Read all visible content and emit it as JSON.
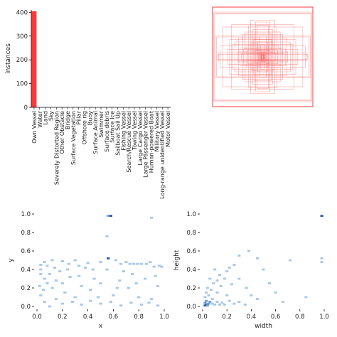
{
  "chart_data": [
    {
      "type": "bar",
      "title": "",
      "xlabel": "",
      "ylabel": "instances",
      "ylim": [
        0,
        410
      ],
      "yticks": [
        0,
        100,
        200,
        300,
        400
      ],
      "color": "#ff3838",
      "categories": [
        "Own Vessel",
        "Water",
        "Land",
        "Sky",
        "Severely Distorted Region",
        "Other Obstacle",
        "Bridge",
        "Surface Vegetation",
        "Pillar",
        "Offshore rig",
        "Buoy",
        "Surface Animal",
        "Swimmer",
        "Surface debris",
        "Surface Ice",
        "Sailboat Sail Up",
        "Fishing Vessel",
        "Search/Rescue Vessel",
        "Towing Vessel",
        "Large Cargo Vessel",
        "Large Passenger Vessel",
        "Human-powered Boat",
        "Military Vessel",
        "Long-range  unidentified Vessel",
        "Motor Vessel"
      ],
      "values": [
        405,
        0,
        0,
        0,
        0,
        0,
        0,
        0,
        0,
        0,
        0,
        0,
        0,
        0,
        0,
        0,
        0,
        0,
        0,
        0,
        0,
        0,
        0,
        0,
        0
      ]
    },
    {
      "type": "boxes",
      "title": "",
      "color": "#ff3838",
      "boxes": [
        [
          0.5,
          0.5,
          1.0,
          0.9
        ],
        [
          0.5,
          0.5,
          0.98,
          0.88
        ],
        [
          0.5,
          0.5,
          0.96,
          0.86
        ],
        [
          0.5,
          0.5,
          0.95,
          0.42
        ],
        [
          0.5,
          0.5,
          0.92,
          0.4
        ],
        [
          0.5,
          0.5,
          0.9,
          0.05
        ],
        [
          0.5,
          0.5,
          0.88,
          0.08
        ],
        [
          0.5,
          0.5,
          0.8,
          0.6
        ],
        [
          0.5,
          0.5,
          0.62,
          0.65
        ],
        [
          0.5,
          0.5,
          0.6,
          0.25
        ],
        [
          0.5,
          0.5,
          0.55,
          0.3
        ],
        [
          0.5,
          0.5,
          0.48,
          0.38
        ],
        [
          0.5,
          0.5,
          0.45,
          0.18
        ],
        [
          0.5,
          0.5,
          0.4,
          0.45
        ],
        [
          0.5,
          0.5,
          0.35,
          0.5
        ],
        [
          0.5,
          0.5,
          0.32,
          0.22
        ],
        [
          0.5,
          0.5,
          0.3,
          0.14
        ],
        [
          0.5,
          0.5,
          0.28,
          0.62
        ],
        [
          0.5,
          0.5,
          0.22,
          0.28
        ],
        [
          0.5,
          0.5,
          0.2,
          0.55
        ],
        [
          0.5,
          0.5,
          0.18,
          0.35
        ],
        [
          0.5,
          0.5,
          0.15,
          0.12
        ],
        [
          0.5,
          0.5,
          0.14,
          0.7
        ],
        [
          0.5,
          0.5,
          0.12,
          0.2
        ],
        [
          0.5,
          0.5,
          0.1,
          0.3
        ],
        [
          0.5,
          0.5,
          0.09,
          0.08
        ],
        [
          0.5,
          0.5,
          0.08,
          0.15
        ],
        [
          0.5,
          0.5,
          0.07,
          0.42
        ],
        [
          0.5,
          0.5,
          0.06,
          0.1
        ],
        [
          0.5,
          0.5,
          0.05,
          0.06
        ],
        [
          0.5,
          0.5,
          0.04,
          0.25
        ],
        [
          0.5,
          0.5,
          0.035,
          0.04
        ],
        [
          0.5,
          0.5,
          0.03,
          0.12
        ],
        [
          0.5,
          0.5,
          0.025,
          0.05
        ],
        [
          0.5,
          0.5,
          0.02,
          0.09
        ],
        [
          0.5,
          0.5,
          0.015,
          0.03
        ],
        [
          0.5,
          0.5,
          0.02,
          0.02
        ],
        [
          0.5,
          0.5,
          0.012,
          0.06
        ],
        [
          0.5,
          0.5,
          0.5,
          0.1
        ],
        [
          0.5,
          0.5,
          0.7,
          0.15
        ],
        [
          0.5,
          0.5,
          0.85,
          0.22
        ],
        [
          0.5,
          0.5,
          0.26,
          0.08
        ],
        [
          0.5,
          0.5,
          0.66,
          0.35
        ],
        [
          0.5,
          0.5,
          0.38,
          0.16
        ],
        [
          0.5,
          0.5,
          0.17,
          0.48
        ],
        [
          0.5,
          0.5,
          0.11,
          0.64
        ],
        [
          0.5,
          0.5,
          0.24,
          0.74
        ],
        [
          0.5,
          0.5,
          0.43,
          0.06
        ]
      ]
    },
    {
      "type": "heatmap",
      "title": "",
      "xlabel": "x",
      "ylabel": "y",
      "xlim": [
        0,
        1
      ],
      "ylim": [
        0,
        1
      ],
      "xticks": [
        "0.0",
        "0.2",
        "0.4",
        "0.6",
        "0.8",
        "1.0"
      ],
      "yticks": [
        "0.0",
        "0.2",
        "0.4",
        "0.6",
        "0.8",
        "1.0"
      ],
      "cells": [
        [
          0.57,
          0.98,
          3
        ],
        [
          0.58,
          0.98,
          3
        ],
        [
          0.56,
          0.98,
          2
        ],
        [
          0.9,
          0.96,
          1
        ],
        [
          0.55,
          0.76,
          1
        ],
        [
          0.56,
          0.52,
          3
        ],
        [
          0.03,
          0.35,
          1
        ],
        [
          0.03,
          0.4,
          1
        ],
        [
          0.03,
          0.45,
          1
        ],
        [
          0.06,
          0.48,
          1
        ],
        [
          0.08,
          0.44,
          1
        ],
        [
          0.12,
          0.5,
          1
        ],
        [
          0.2,
          0.49,
          1
        ],
        [
          0.25,
          0.46,
          1
        ],
        [
          0.3,
          0.5,
          1
        ],
        [
          0.33,
          0.44,
          1
        ],
        [
          0.4,
          0.47,
          1
        ],
        [
          0.5,
          0.48,
          1
        ],
        [
          0.62,
          0.5,
          1
        ],
        [
          0.66,
          0.46,
          1
        ],
        [
          0.7,
          0.48,
          1
        ],
        [
          0.73,
          0.46,
          1
        ],
        [
          0.76,
          0.46,
          1
        ],
        [
          0.79,
          0.46,
          1
        ],
        [
          0.82,
          0.46,
          1
        ],
        [
          0.86,
          0.46,
          1
        ],
        [
          0.89,
          0.48,
          1
        ],
        [
          0.92,
          0.43,
          1
        ],
        [
          0.96,
          0.44,
          1
        ],
        [
          0.98,
          0.43,
          1
        ],
        [
          0.06,
          0.3,
          1
        ],
        [
          0.08,
          0.25,
          1
        ],
        [
          0.1,
          0.35,
          1
        ],
        [
          0.12,
          0.2,
          1
        ],
        [
          0.15,
          0.28,
          1
        ],
        [
          0.18,
          0.38,
          1
        ],
        [
          0.2,
          0.25,
          1
        ],
        [
          0.22,
          0.15,
          1
        ],
        [
          0.26,
          0.32,
          1
        ],
        [
          0.3,
          0.1,
          1
        ],
        [
          0.35,
          0.22,
          1
        ],
        [
          0.38,
          0.42,
          1
        ],
        [
          0.42,
          0.18,
          1
        ],
        [
          0.45,
          0.3,
          1
        ],
        [
          0.5,
          0.25,
          1
        ],
        [
          0.55,
          0.4,
          1
        ],
        [
          0.6,
          0.12,
          1
        ],
        [
          0.65,
          0.28,
          1
        ],
        [
          0.68,
          0.38,
          1
        ],
        [
          0.72,
          0.2,
          1
        ],
        [
          0.75,
          0.35,
          1
        ],
        [
          0.8,
          0.1,
          1
        ],
        [
          0.85,
          0.3,
          1
        ],
        [
          0.9,
          0.08,
          1
        ],
        [
          0.95,
          0.22,
          1
        ],
        [
          0.03,
          0.12,
          1
        ],
        [
          0.06,
          0.05,
          1
        ],
        [
          0.1,
          0.0,
          1
        ],
        [
          0.15,
          0.08,
          1
        ],
        [
          0.2,
          0.03,
          1
        ],
        [
          0.28,
          0.05,
          1
        ],
        [
          0.35,
          0.02,
          1
        ],
        [
          0.42,
          0.06,
          1
        ],
        [
          0.5,
          0.03,
          1
        ],
        [
          0.58,
          0.05,
          1
        ],
        [
          0.66,
          0.01,
          1
        ],
        [
          0.74,
          0.04,
          1
        ],
        [
          0.82,
          0.02,
          1
        ],
        [
          0.88,
          0.04,
          1
        ],
        [
          0.95,
          0.01,
          1
        ],
        [
          0.02,
          0.22,
          1
        ],
        [
          0.05,
          0.18,
          1
        ],
        [
          0.24,
          0.4,
          1
        ],
        [
          0.48,
          0.1,
          1
        ],
        [
          0.63,
          0.2,
          1
        ],
        [
          0.78,
          0.25,
          1
        ],
        [
          0.93,
          0.33,
          1
        ],
        [
          0.14,
          0.42,
          1
        ],
        [
          0.33,
          0.33,
          1
        ],
        [
          0.44,
          0.4,
          1
        ]
      ]
    },
    {
      "type": "heatmap",
      "title": "",
      "xlabel": "width",
      "ylabel": "height",
      "xlim": [
        0,
        1
      ],
      "ylim": [
        0,
        1
      ],
      "xticks": [
        "0.0",
        "0.2",
        "0.4",
        "0.6",
        "0.8",
        "1.0"
      ],
      "yticks": [
        "0.0",
        "0.2",
        "0.4",
        "0.6",
        "0.8",
        "1.0"
      ],
      "cells": [
        [
          0.98,
          0.98,
          3
        ],
        [
          0.02,
          0.01,
          3
        ],
        [
          0.03,
          0.02,
          3
        ],
        [
          0.04,
          0.01,
          2
        ],
        [
          0.05,
          0.03,
          2
        ],
        [
          0.02,
          0.04,
          2
        ],
        [
          0.03,
          0.06,
          2
        ],
        [
          0.06,
          0.05,
          2
        ],
        [
          0.08,
          0.03,
          1
        ],
        [
          0.1,
          0.02,
          1
        ],
        [
          0.12,
          0.05,
          1
        ],
        [
          0.14,
          0.02,
          1
        ],
        [
          0.16,
          0.04,
          1
        ],
        [
          0.18,
          0.02,
          1
        ],
        [
          0.22,
          0.06,
          1
        ],
        [
          0.26,
          0.03,
          1
        ],
        [
          0.3,
          0.05,
          1
        ],
        [
          0.35,
          0.02,
          1
        ],
        [
          0.02,
          0.1,
          1
        ],
        [
          0.03,
          0.15,
          1
        ],
        [
          0.05,
          0.12,
          1
        ],
        [
          0.04,
          0.2,
          1
        ],
        [
          0.07,
          0.18,
          1
        ],
        [
          0.09,
          0.25,
          1
        ],
        [
          0.12,
          0.15,
          1
        ],
        [
          0.15,
          0.22,
          1
        ],
        [
          0.18,
          0.3,
          1
        ],
        [
          0.2,
          0.38,
          1
        ],
        [
          0.22,
          0.42,
          1
        ],
        [
          0.26,
          0.45,
          1
        ],
        [
          0.1,
          0.4,
          1
        ],
        [
          0.14,
          0.34,
          1
        ],
        [
          0.24,
          0.24,
          1
        ],
        [
          0.3,
          0.3,
          1
        ],
        [
          0.36,
          0.2,
          1
        ],
        [
          0.4,
          0.12,
          1
        ],
        [
          0.45,
          0.08,
          1
        ],
        [
          0.5,
          0.4,
          1
        ],
        [
          0.55,
          0.25,
          1
        ],
        [
          0.6,
          0.15,
          1
        ],
        [
          0.66,
          0.05,
          1
        ],
        [
          0.72,
          0.5,
          1
        ],
        [
          0.3,
          0.55,
          1
        ],
        [
          0.38,
          0.6,
          1
        ],
        [
          0.45,
          0.52,
          1
        ],
        [
          0.2,
          0.12,
          1
        ],
        [
          0.08,
          0.08,
          1
        ],
        [
          0.98,
          0.48,
          1
        ],
        [
          0.98,
          0.52,
          1
        ],
        [
          0.85,
          0.1,
          1
        ],
        [
          0.12,
          0.28,
          1
        ],
        [
          0.06,
          0.3,
          1
        ]
      ]
    }
  ]
}
